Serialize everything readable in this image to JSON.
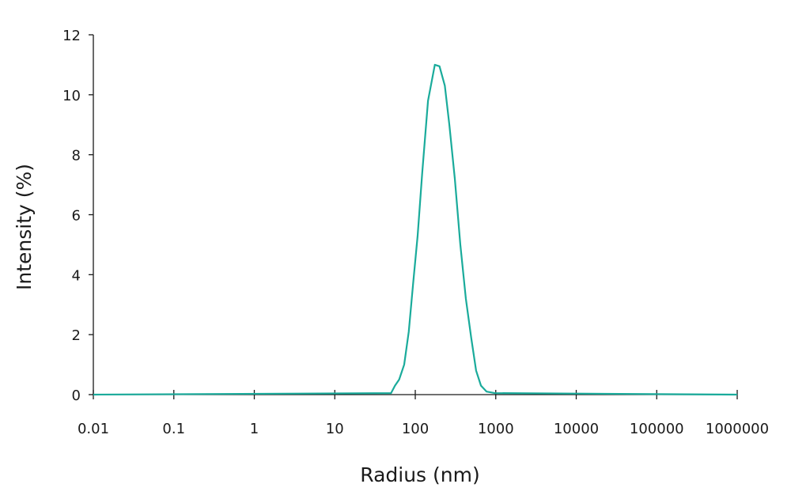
{
  "chart_data": {
    "type": "line",
    "x_label": "Radius (nm)",
    "y_label": "Intensity (%)",
    "x": [
      0.01,
      50,
      56,
      63,
      72.8,
      83,
      94,
      107,
      122,
      144,
      175,
      200,
      233,
      265,
      310,
      363,
      425,
      495,
      570,
      655,
      770,
      970,
      1000000
    ],
    "values": [
      0,
      0.05,
      0.3,
      0.5,
      1.0,
      2.1,
      3.7,
      5.3,
      7.4,
      9.8,
      11.0,
      10.95,
      10.3,
      9.0,
      7.2,
      5.0,
      3.2,
      1.9,
      0.8,
      0.3,
      0.1,
      0.05,
      0
    ],
    "color": "#1aab9b",
    "xscale": "log",
    "xlim": [
      0.01,
      1000000
    ],
    "xticks": [
      0.01,
      0.1,
      1,
      10,
      100,
      1000,
      10000,
      100000,
      1000000
    ],
    "ylim": [
      0,
      12
    ],
    "yticks": [
      0,
      2,
      4,
      6,
      8,
      10,
      12
    ],
    "grid": false
  }
}
